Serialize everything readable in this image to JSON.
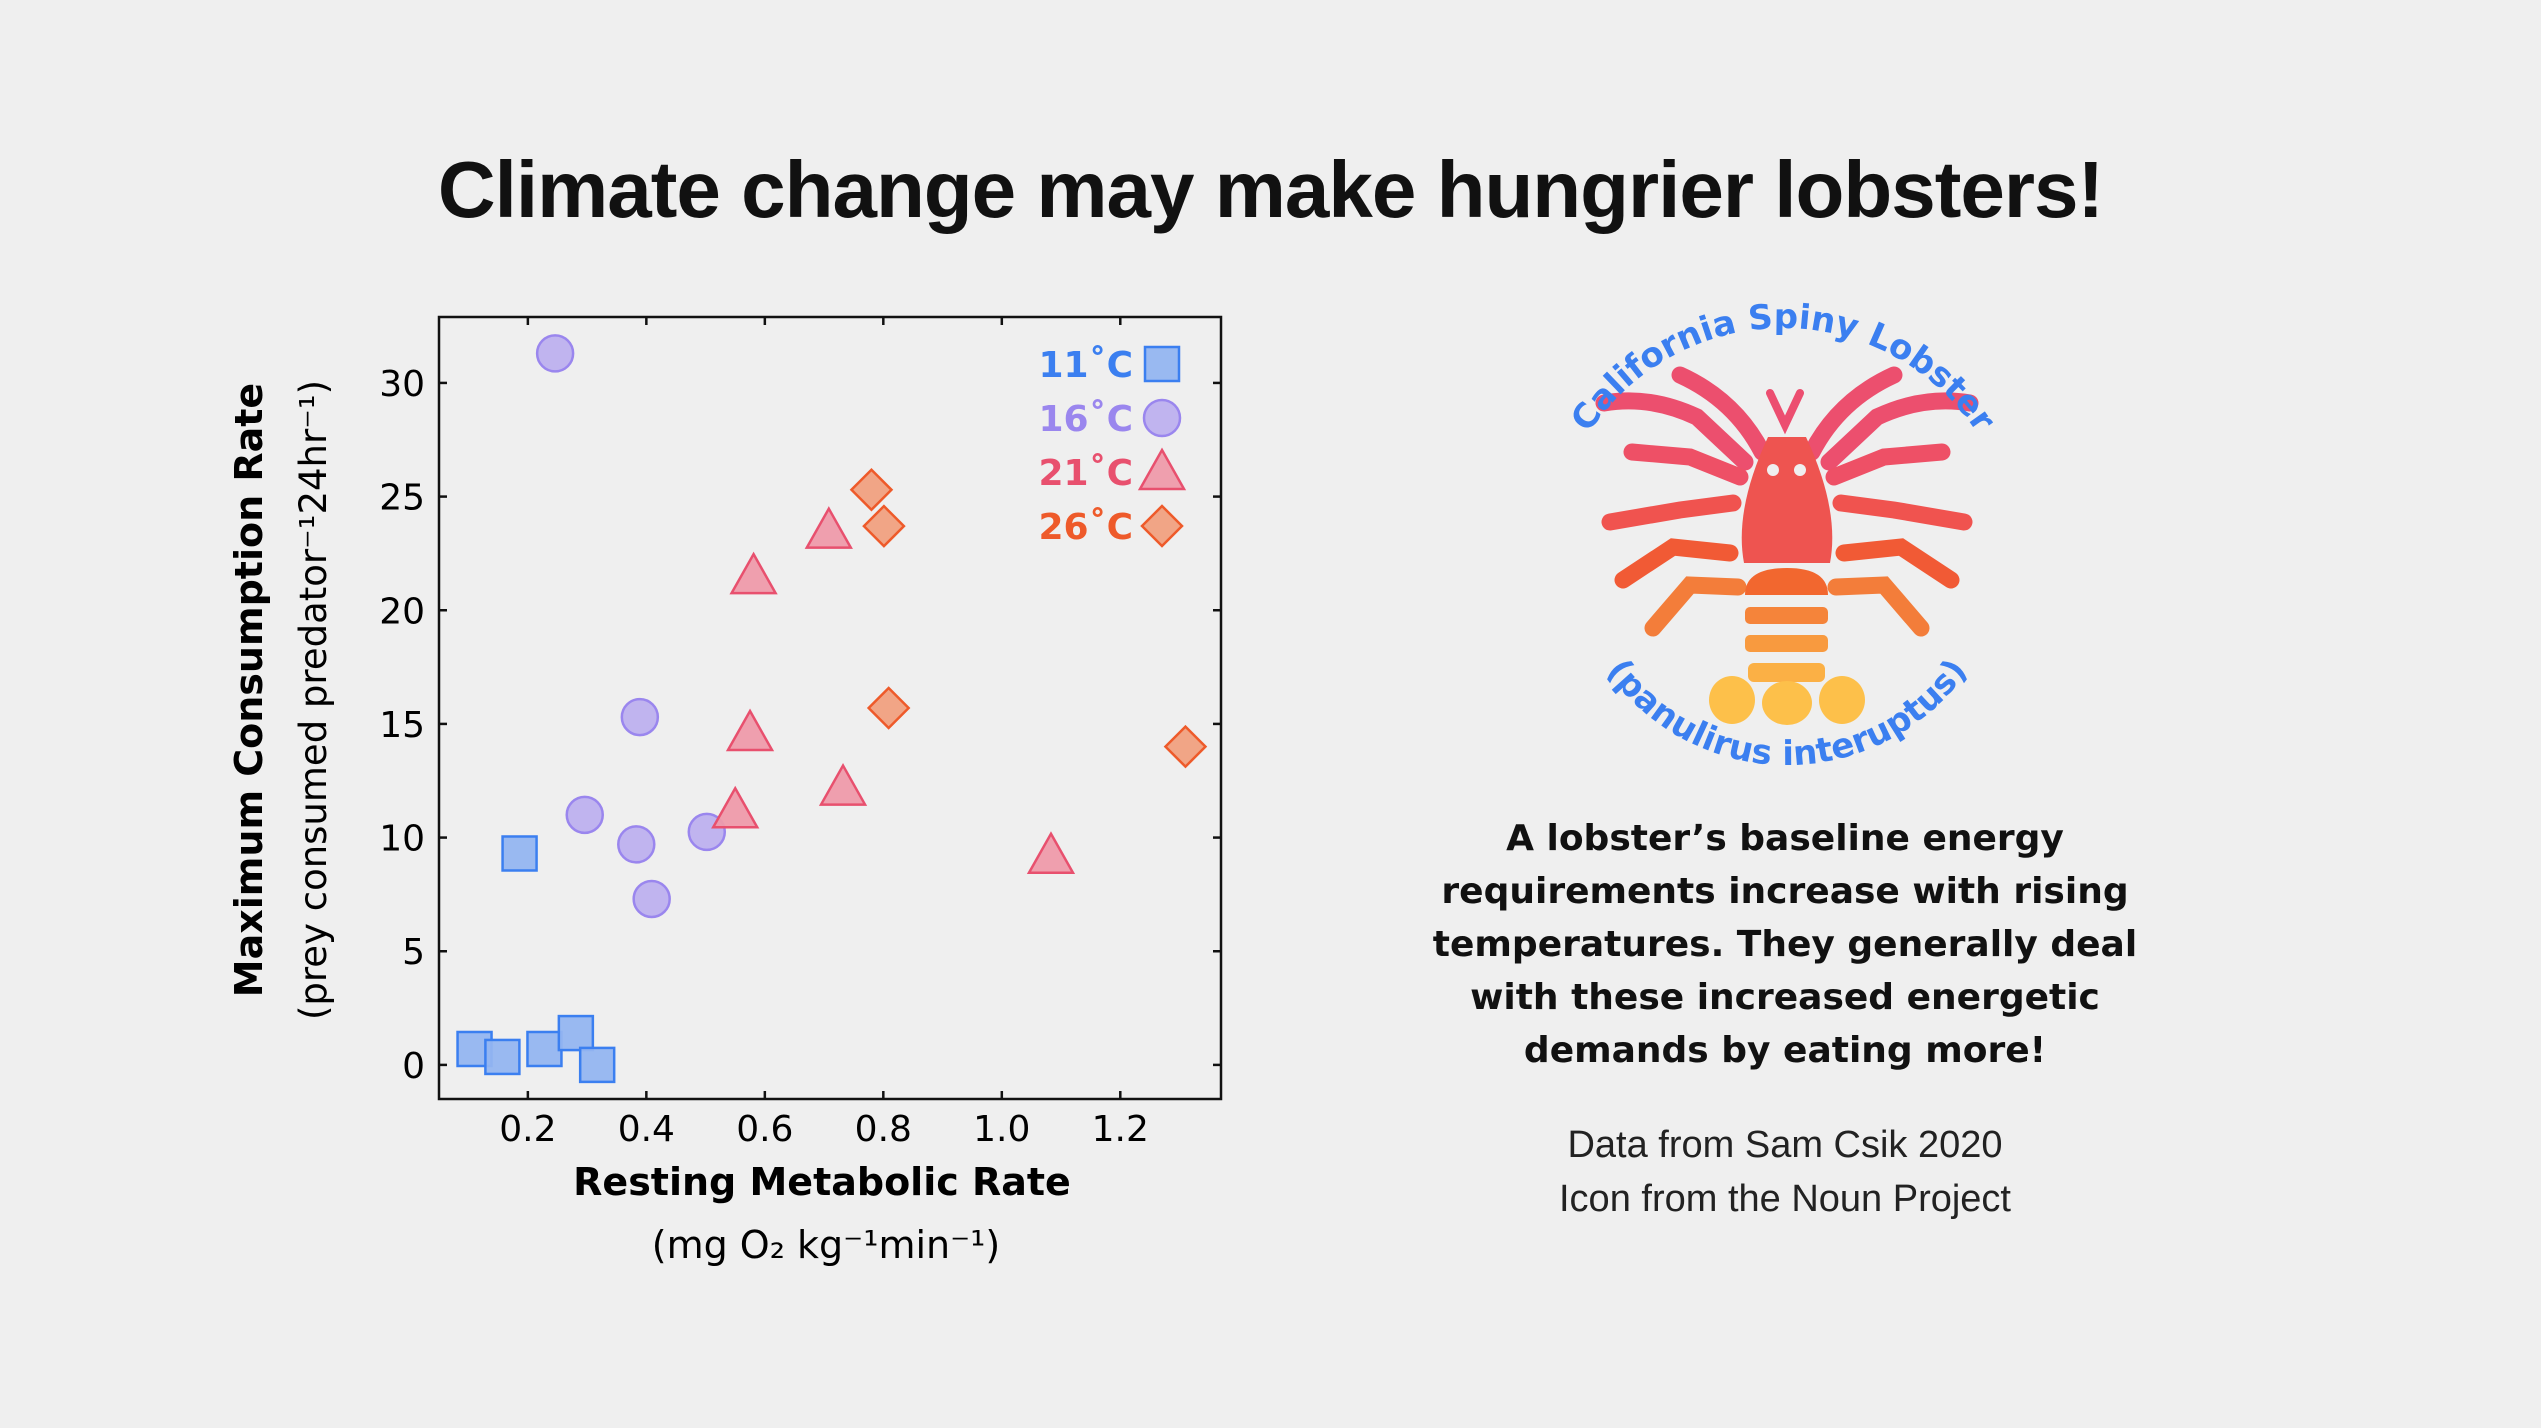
{
  "title": "Climate change may make hungrier lobsters!",
  "colors": {
    "background": "#efefef",
    "11C": {
      "fill": "#94b5f0",
      "stroke": "#3b7ff0",
      "text": "#3b7ff0"
    },
    "16C": {
      "fill": "#bdb0ee",
      "stroke": "#9a86ee",
      "text": "#9a86ee"
    },
    "21C": {
      "fill": "#ee9aaa",
      "stroke": "#e8506e",
      "text": "#e8506e"
    },
    "26C": {
      "fill": "#f0a080",
      "stroke": "#ee5a2a",
      "text": "#ee5a2a"
    },
    "arc_text": "#3b7ff0"
  },
  "chart_data": {
    "type": "scatter",
    "title": "",
    "xlabel": "Resting Metabolic Rate",
    "xlabel_units": "(mg O₂ kg⁻¹min⁻¹)",
    "ylabel": "Maximum Consumption Rate",
    "ylabel_units": "(prey consumed predator⁻¹24hr⁻¹)",
    "xlim": [
      0.05,
      1.37
    ],
    "ylim": [
      -1.5,
      32.9
    ],
    "xticks": [
      "0.2",
      "0.4",
      "0.6",
      "0.8",
      "1.0",
      "1.2"
    ],
    "xtick_values": [
      0.2,
      0.4,
      0.6,
      0.8,
      1.0,
      1.2
    ],
    "yticks": [
      "0",
      "5",
      "10",
      "15",
      "20",
      "25",
      "30"
    ],
    "ytick_values": [
      0,
      5,
      10,
      15,
      20,
      25,
      30
    ],
    "grid": false,
    "legend_position": "top-right",
    "series": [
      {
        "name": "11˚C",
        "marker": "square",
        "color_key": "11C",
        "x": [
          0.11,
          0.157,
          0.228,
          0.281,
          0.317,
          0.186
        ],
        "y": [
          0.7,
          0.35,
          0.7,
          1.4,
          0.0,
          9.3
        ]
      },
      {
        "name": "16˚C",
        "marker": "circle",
        "color_key": "16C",
        "x": [
          0.246,
          0.389,
          0.296,
          0.383,
          0.502,
          0.409
        ],
        "y": [
          31.3,
          15.3,
          11.0,
          9.7,
          10.25,
          7.3
        ]
      },
      {
        "name": "21˚C",
        "marker": "triangle",
        "color_key": "21C",
        "x": [
          0.581,
          0.708,
          0.575,
          0.732,
          0.55,
          1.083
        ],
        "y": [
          21.5,
          23.5,
          14.6,
          12.2,
          11.2,
          9.2
        ]
      },
      {
        "name": "26˚C",
        "marker": "diamond",
        "color_key": "26C",
        "x": [
          0.78,
          0.801,
          0.809,
          1.31
        ],
        "y": [
          25.3,
          23.7,
          15.7,
          14.0
        ]
      }
    ]
  },
  "icon": {
    "name": "lobster-icon",
    "arc_top": "California Spiny Lobster",
    "arc_bottom": "(panulirus interuptus)"
  },
  "blurb": [
    "A lobster’s baseline energy",
    "requirements increase with rising",
    "temperatures. They generally deal",
    "with these increased energetic",
    "demands by eating more!"
  ],
  "credits": [
    "Data from Sam Csik 2020",
    "Icon from the Noun Project"
  ]
}
